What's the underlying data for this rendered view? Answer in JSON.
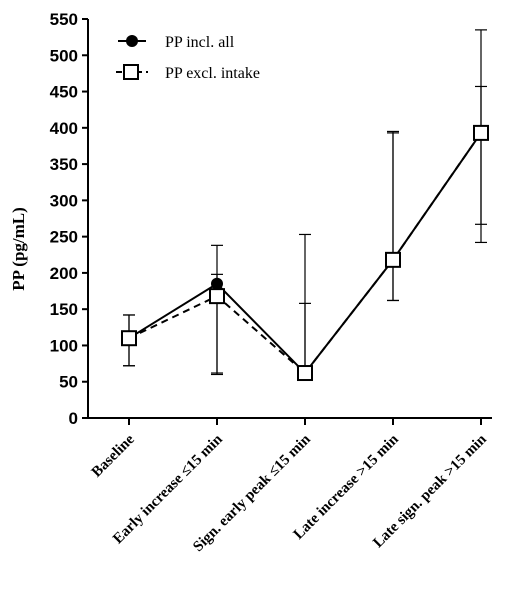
{
  "chart_data": {
    "type": "line",
    "title": "",
    "xlabel": "",
    "ylabel": "PP (pg/mL)",
    "ylim": [
      0,
      550
    ],
    "yticks": [
      0,
      50,
      100,
      150,
      200,
      250,
      300,
      350,
      400,
      450,
      500,
      550
    ],
    "categories": [
      "Baseline",
      "Early increase ≤15 min",
      "Sign. early peak  ≤15 min",
      "Late increase >15 min",
      "Late sign. peak >15 min"
    ],
    "legend_position": "top-left",
    "grid": false,
    "series": [
      {
        "name": "PP incl. all",
        "marker": "filled-circle",
        "line": "solid",
        "color": "#000000",
        "values": [
          110,
          185,
          62,
          218,
          393
        ],
        "err_low": [
          72,
          62,
          62,
          162,
          242
        ],
        "err_high": [
          142,
          198,
          158,
          393,
          535
        ]
      },
      {
        "name": "PP excl. intake",
        "marker": "open-square",
        "line": "dashed",
        "color": "#000000",
        "values": [
          110,
          168,
          62,
          218,
          393
        ],
        "err_low": [
          72,
          60,
          62,
          162,
          267
        ],
        "err_high": [
          142,
          238,
          253,
          395,
          457
        ]
      }
    ]
  }
}
